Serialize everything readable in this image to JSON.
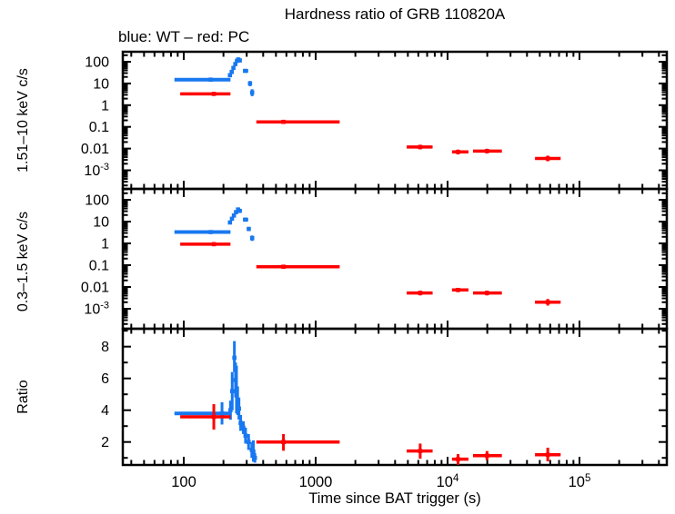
{
  "chart_data": {
    "type": "scatter",
    "title": "Hardness ratio of GRB 110820A",
    "legend": "blue: WT – red: PC",
    "colors": {
      "wt_blue": "#1878f0",
      "pc_red": "#ff0000",
      "frame": "#000000"
    },
    "x_axis": {
      "label": "Time since BAT trigger (s)",
      "scale": "log",
      "xlim": [
        34.5,
        459000
      ],
      "ticks": [
        {
          "t": 100,
          "label": "100"
        },
        {
          "t": 1000,
          "label": "1000"
        },
        {
          "t": 10000,
          "label": "10",
          "exp": "4"
        },
        {
          "t": 100000,
          "label": "10",
          "exp": "5"
        }
      ]
    },
    "log_ytick_labels": [
      {
        "v": 100,
        "label": "100"
      },
      {
        "v": 10,
        "label": "10"
      },
      {
        "v": 1,
        "label": "1"
      },
      {
        "v": 0.1,
        "label": "0.1"
      },
      {
        "v": 0.01,
        "label": "0.01"
      },
      {
        "v": 0.001,
        "label": "10",
        "exp": "-3"
      }
    ],
    "panels": [
      {
        "id": "hard",
        "ylabel": "1.51–10 keV c/s",
        "yscale": "log",
        "ylim": [
          0.00015,
          265
        ],
        "series": [
          {
            "name": "WT",
            "color_key": "wt_blue",
            "points": [
              {
                "t": 160,
                "v": 15,
                "terr": [
                  85,
                  226
                ]
              },
              {
                "t": 224,
                "v": 24,
                "verr": [
                  20,
                  28
                ]
              },
              {
                "t": 231,
                "v": 34,
                "verr": [
                  29,
                  39
                ]
              },
              {
                "t": 238,
                "v": 52,
                "verr": [
                  45,
                  60
                ]
              },
              {
                "t": 246,
                "v": 78,
                "verr": [
                  68,
                  89
                ]
              },
              {
                "t": 253,
                "v": 110,
                "verr": [
                  97,
                  125
                ]
              },
              {
                "t": 259,
                "v": 128,
                "verr": [
                  113,
                  144
                ]
              },
              {
                "t": 266,
                "v": 115,
                "verr": [
                  101,
                  130
                ]
              },
              {
                "t": 293,
                "v": 38,
                "terr": [
                  281,
                  308
                ],
                "verr": [
                  33,
                  43
                ]
              },
              {
                "t": 318,
                "v": 10,
                "verr": [
                  7.5,
                  13
                ]
              },
              {
                "t": 330,
                "v": 3.8,
                "verr": [
                  2.6,
                  5.4
                ]
              }
            ]
          },
          {
            "name": "PC",
            "color_key": "pc_red",
            "points": [
              {
                "t": 169,
                "v": 3.3,
                "terr": [
                  94,
                  226
                ],
                "verr": [
                  2.85,
                  3.8
                ]
              },
              {
                "t": 570,
                "v": 0.17,
                "terr": [
                  355,
                  1520
                ],
                "verr": [
                  0.145,
                  0.2
                ]
              },
              {
                "t": 6200,
                "v": 0.0118,
                "terr": [
                  4900,
                  7700
                ],
                "verr": [
                  0.0092,
                  0.015
                ]
              },
              {
                "t": 12000,
                "v": 0.007,
                "terr": [
                  10800,
                  14400
                ],
                "verr": [
                  0.0054,
                  0.009
                ]
              },
              {
                "t": 19900,
                "v": 0.0077,
                "terr": [
                  15600,
                  25800
                ],
                "verr": [
                  0.006,
                  0.0098
                ]
              },
              {
                "t": 57500,
                "v": 0.0035,
                "terr": [
                  46000,
                  72000
                ],
                "verr": [
                  0.0026,
                  0.0047
                ]
              }
            ]
          }
        ]
      },
      {
        "id": "soft",
        "ylabel": "0.3–1.5 keV c/s",
        "yscale": "log",
        "ylim": [
          0.00012,
          316
        ],
        "series": [
          {
            "name": "WT",
            "color_key": "wt_blue",
            "points": [
              {
                "t": 160,
                "v": 3.3,
                "terr": [
                  85,
                  226
                ]
              },
              {
                "t": 224,
                "v": 9.1,
                "verr": [
                  7.8,
                  10.6
                ]
              },
              {
                "t": 232,
                "v": 13.5,
                "verr": [
                  11.7,
                  15.6
                ]
              },
              {
                "t": 240,
                "v": 19,
                "verr": [
                  16.5,
                  22
                ]
              },
              {
                "t": 249,
                "v": 27,
                "verr": [
                  23.5,
                  31
                ]
              },
              {
                "t": 258,
                "v": 36,
                "verr": [
                  31.5,
                  41
                ]
              },
              {
                "t": 266,
                "v": 31,
                "verr": [
                  27,
                  35.5
                ]
              },
              {
                "t": 293,
                "v": 12.3,
                "terr": [
                  281,
                  308
                ],
                "verr": [
                  10.7,
                  14.1
                ]
              },
              {
                "t": 311,
                "v": 4.6,
                "verr": [
                  3.7,
                  5.7
                ]
              },
              {
                "t": 330,
                "v": 1.75,
                "terr": [
                  320,
                  342
                ],
                "verr": [
                  1.3,
                  2.3
                ]
              }
            ]
          },
          {
            "name": "PC",
            "color_key": "pc_red",
            "points": [
              {
                "t": 169,
                "v": 0.92,
                "terr": [
                  94,
                  226
                ],
                "verr": [
                  0.79,
                  1.07
                ]
              },
              {
                "t": 570,
                "v": 0.085,
                "terr": [
                  355,
                  1520
                ],
                "verr": [
                  0.072,
                  0.1
                ]
              },
              {
                "t": 6200,
                "v": 0.0053,
                "terr": [
                  4900,
                  7700
                ],
                "verr": [
                  0.0041,
                  0.0068
                ]
              },
              {
                "t": 12000,
                "v": 0.0073,
                "terr": [
                  10800,
                  14400
                ],
                "verr": [
                  0.0058,
                  0.0091
                ]
              },
              {
                "t": 19900,
                "v": 0.0053,
                "terr": [
                  15600,
                  25800
                ],
                "verr": [
                  0.0041,
                  0.0068
                ]
              },
              {
                "t": 57500,
                "v": 0.002,
                "terr": [
                  46000,
                  72000
                ],
                "verr": [
                  0.0014,
                  0.0028
                ]
              }
            ]
          }
        ]
      },
      {
        "id": "ratio",
        "ylabel": "Ratio",
        "yscale": "linear",
        "ylim": [
          0.55,
          9.24
        ],
        "ytick_labels": [
          {
            "v": 8,
            "label": "8"
          },
          {
            "v": 6,
            "label": "6"
          },
          {
            "v": 4,
            "label": "4"
          },
          {
            "v": 2,
            "label": "2"
          }
        ],
        "series": [
          {
            "name": "WT",
            "color_key": "wt_blue",
            "points": [
              {
                "t": 195,
                "v": 3.8,
                "terr": [
                  85,
                  226
                ],
                "verr": [
                  3.1,
                  4.5
                ]
              },
              {
                "t": 226,
                "v": 4.0,
                "verr": [
                  3.4,
                  4.6
                ]
              },
              {
                "t": 233,
                "v": 5.2,
                "verr": [
                  4.0,
                  6.4
                ]
              },
              {
                "t": 242,
                "v": 7.3,
                "verr": [
                  6.4,
                  8.35
                ]
              },
              {
                "t": 247,
                "v": 5.9,
                "verr": [
                  4.8,
                  7.0
                ]
              },
              {
                "t": 251,
                "v": 5.3,
                "verr": [
                  3.8,
                  6.8
                ]
              },
              {
                "t": 256,
                "v": 4.6,
                "verr": [
                  3.7,
                  5.5
                ]
              },
              {
                "t": 262,
                "v": 4.1,
                "verr": [
                  3.4,
                  4.8
                ]
              },
              {
                "t": 270,
                "v": 3.2,
                "verr": [
                  2.7,
                  3.7
                ]
              },
              {
                "t": 283,
                "v": 2.9,
                "verr": [
                  2.5,
                  3.3
                ]
              },
              {
                "t": 294,
                "v": 2.4,
                "verr": [
                  1.9,
                  2.9
                ]
              },
              {
                "t": 310,
                "v": 2.0,
                "verr": [
                  1.5,
                  2.5
                ]
              },
              {
                "t": 328,
                "v": 1.5,
                "verr": [
                  1.0,
                  2.0
                ]
              },
              {
                "t": 337,
                "v": 1.4,
                "verr": [
                  0.76,
                  2.1
                ]
              },
              {
                "t": 346,
                "v": 1.0,
                "verr": [
                  0.7,
                  1.3
                ]
              }
            ]
          },
          {
            "name": "PC",
            "color_key": "pc_red",
            "points": [
              {
                "t": 169,
                "v": 3.58,
                "terr": [
                  94,
                  226
                ],
                "verr": [
                  2.78,
                  4.38
                ]
              },
              {
                "t": 570,
                "v": 2.0,
                "terr": [
                  355,
                  1520
                ],
                "verr": [
                  1.45,
                  2.5
                ]
              },
              {
                "t": 6200,
                "v": 1.43,
                "terr": [
                  4900,
                  7700
                ],
                "verr": [
                  0.95,
                  1.9
                ]
              },
              {
                "t": 12000,
                "v": 0.92,
                "terr": [
                  10800,
                  14400
                ],
                "verr": [
                  0.57,
                  1.24
                ]
              },
              {
                "t": 19900,
                "v": 1.14,
                "terr": [
                  15600,
                  25800
                ],
                "verr": [
                  0.86,
                  1.43
                ]
              },
              {
                "t": 57500,
                "v": 1.2,
                "terr": [
                  46000,
                  72000
                ],
                "verr": [
                  0.78,
                  1.64
                ]
              }
            ]
          }
        ]
      }
    ]
  }
}
